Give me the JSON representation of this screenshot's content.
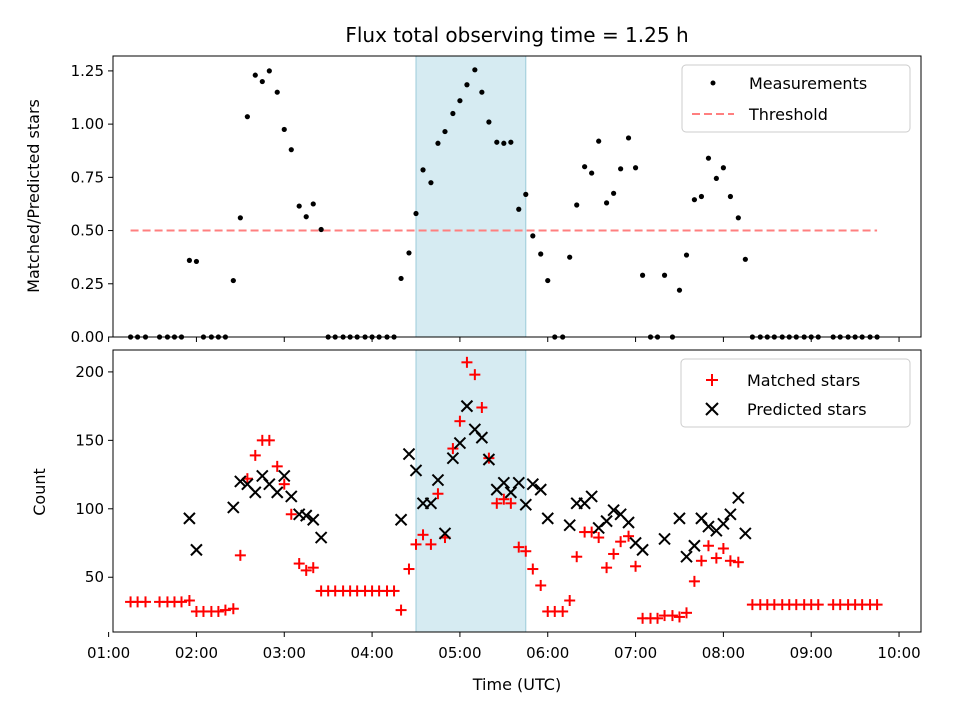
{
  "chart_data": [
    {
      "type": "scatter",
      "title": "Flux total observing time = 1.25 h",
      "xlabel": "",
      "ylabel": "Matched/Predicted stars",
      "ylim": [
        0,
        1.32
      ],
      "yticks": [
        "0.00",
        "0.25",
        "0.50",
        "0.75",
        "1.00",
        "1.25"
      ],
      "xlim_hours": [
        1.05,
        10.25
      ],
      "highlight_span_hours": [
        4.5,
        5.75
      ],
      "threshold": {
        "name": "Threshold",
        "value": 0.5,
        "x_range_hours": [
          1.25,
          9.75
        ],
        "color": "#ff7f7f"
      },
      "legend": {
        "placement": "top-right",
        "entries": [
          "Measurements",
          "Threshold"
        ]
      },
      "series": [
        {
          "name": "Measurements",
          "color": "#000000",
          "points": [
            [
              1.25,
              0
            ],
            [
              1.33,
              0
            ],
            [
              1.42,
              0
            ],
            [
              1.58,
              0
            ],
            [
              1.67,
              0
            ],
            [
              1.75,
              0
            ],
            [
              1.83,
              0
            ],
            [
              1.92,
              0.36
            ],
            [
              2.0,
              0.355
            ],
            [
              2.08,
              0
            ],
            [
              2.17,
              0
            ],
            [
              2.25,
              0
            ],
            [
              2.33,
              0
            ],
            [
              2.42,
              0.265
            ],
            [
              2.5,
              0.56
            ],
            [
              2.58,
              1.035
            ],
            [
              2.67,
              1.23
            ],
            [
              2.75,
              1.2
            ],
            [
              2.83,
              1.25
            ],
            [
              2.92,
              1.15
            ],
            [
              3.0,
              0.975
            ],
            [
              3.08,
              0.88
            ],
            [
              3.17,
              0.615
            ],
            [
              3.25,
              0.565
            ],
            [
              3.33,
              0.625
            ],
            [
              3.42,
              0.505
            ],
            [
              3.5,
              0
            ],
            [
              3.58,
              0
            ],
            [
              3.67,
              0
            ],
            [
              3.75,
              0
            ],
            [
              3.83,
              0
            ],
            [
              3.92,
              0
            ],
            [
              4.0,
              0
            ],
            [
              4.08,
              0
            ],
            [
              4.17,
              0
            ],
            [
              4.25,
              0
            ],
            [
              4.33,
              0.275
            ],
            [
              4.42,
              0.395
            ],
            [
              4.5,
              0.58
            ],
            [
              4.58,
              0.785
            ],
            [
              4.67,
              0.725
            ],
            [
              4.75,
              0.91
            ],
            [
              4.83,
              0.965
            ],
            [
              4.92,
              1.05
            ],
            [
              5.0,
              1.11
            ],
            [
              5.08,
              1.185
            ],
            [
              5.17,
              1.255
            ],
            [
              5.25,
              1.15
            ],
            [
              5.33,
              1.01
            ],
            [
              5.42,
              0.915
            ],
            [
              5.5,
              0.91
            ],
            [
              5.58,
              0.915
            ],
            [
              5.67,
              0.6
            ],
            [
              5.75,
              0.67
            ],
            [
              5.83,
              0.475
            ],
            [
              5.92,
              0.39
            ],
            [
              6.0,
              0.265
            ],
            [
              6.08,
              0
            ],
            [
              6.17,
              0
            ],
            [
              6.25,
              0.375
            ],
            [
              6.33,
              0.62
            ],
            [
              6.42,
              0.8
            ],
            [
              6.5,
              0.77
            ],
            [
              6.58,
              0.92
            ],
            [
              6.67,
              0.63
            ],
            [
              6.75,
              0.675
            ],
            [
              6.83,
              0.79
            ],
            [
              6.92,
              0.935
            ],
            [
              7.0,
              0.795
            ],
            [
              7.08,
              0.29
            ],
            [
              7.17,
              0
            ],
            [
              7.25,
              0
            ],
            [
              7.33,
              0.29
            ],
            [
              7.42,
              0
            ],
            [
              7.5,
              0.22
            ],
            [
              7.58,
              0.385
            ],
            [
              7.67,
              0.645
            ],
            [
              7.75,
              0.66
            ],
            [
              7.83,
              0.84
            ],
            [
              7.92,
              0.745
            ],
            [
              8.0,
              0.795
            ],
            [
              8.08,
              0.66
            ],
            [
              8.17,
              0.56
            ],
            [
              8.25,
              0.365
            ],
            [
              8.33,
              0
            ],
            [
              8.42,
              0
            ],
            [
              8.5,
              0
            ],
            [
              8.58,
              0
            ],
            [
              8.67,
              0
            ],
            [
              8.75,
              0
            ],
            [
              8.83,
              0
            ],
            [
              8.92,
              0
            ],
            [
              9.0,
              0
            ],
            [
              9.08,
              0
            ],
            [
              9.25,
              0
            ],
            [
              9.33,
              0
            ],
            [
              9.42,
              0
            ],
            [
              9.5,
              0
            ],
            [
              9.58,
              0
            ],
            [
              9.67,
              0
            ],
            [
              9.75,
              0
            ]
          ]
        }
      ]
    },
    {
      "type": "scatter",
      "title": "",
      "xlabel": "Time (UTC)",
      "ylabel": "Count",
      "ylim": [
        10,
        216
      ],
      "yticks": [
        "50",
        "100",
        "150",
        "200"
      ],
      "xlim_hours": [
        1.05,
        10.25
      ],
      "xticks": [
        "01:00",
        "02:00",
        "03:00",
        "04:00",
        "05:00",
        "06:00",
        "07:00",
        "08:00",
        "09:00",
        "10:00"
      ],
      "highlight_span_hours": [
        4.5,
        5.75
      ],
      "legend": {
        "placement": "top-right",
        "entries": [
          "Matched stars",
          "Predicted stars"
        ]
      },
      "series": [
        {
          "name": "Matched stars",
          "marker": "plus",
          "color": "#ff0000",
          "points": [
            [
              1.25,
              32
            ],
            [
              1.33,
              32
            ],
            [
              1.42,
              32
            ],
            [
              1.58,
              32
            ],
            [
              1.67,
              32
            ],
            [
              1.75,
              32
            ],
            [
              1.83,
              32
            ],
            [
              1.92,
              33
            ],
            [
              2.0,
              25
            ],
            [
              2.08,
              25
            ],
            [
              2.17,
              25
            ],
            [
              2.25,
              25
            ],
            [
              2.33,
              26
            ],
            [
              2.42,
              27
            ],
            [
              2.5,
              66
            ],
            [
              2.58,
              122
            ],
            [
              2.67,
              139
            ],
            [
              2.75,
              150
            ],
            [
              2.83,
              150
            ],
            [
              2.92,
              131
            ],
            [
              3.0,
              118
            ],
            [
              3.08,
              96
            ],
            [
              3.17,
              60
            ],
            [
              3.25,
              55
            ],
            [
              3.33,
              57
            ],
            [
              3.42,
              40
            ],
            [
              3.5,
              40
            ],
            [
              3.58,
              40
            ],
            [
              3.67,
              40
            ],
            [
              3.75,
              40
            ],
            [
              3.83,
              40
            ],
            [
              3.92,
              40
            ],
            [
              4.0,
              40
            ],
            [
              4.08,
              40
            ],
            [
              4.17,
              40
            ],
            [
              4.25,
              40
            ],
            [
              4.33,
              26
            ],
            [
              4.42,
              56
            ],
            [
              4.5,
              74
            ],
            [
              4.58,
              81
            ],
            [
              4.67,
              74
            ],
            [
              4.75,
              111
            ],
            [
              4.83,
              79
            ],
            [
              4.92,
              144
            ],
            [
              5.0,
              164
            ],
            [
              5.08,
              207
            ],
            [
              5.17,
              198
            ],
            [
              5.25,
              174
            ],
            [
              5.33,
              137
            ],
            [
              5.42,
              104
            ],
            [
              5.5,
              107
            ],
            [
              5.58,
              104
            ],
            [
              5.67,
              72
            ],
            [
              5.75,
              69
            ],
            [
              5.83,
              56
            ],
            [
              5.92,
              44
            ],
            [
              6.0,
              25
            ],
            [
              6.08,
              25
            ],
            [
              6.17,
              25
            ],
            [
              6.25,
              33
            ],
            [
              6.33,
              65
            ],
            [
              6.42,
              83
            ],
            [
              6.5,
              83
            ],
            [
              6.58,
              79
            ],
            [
              6.67,
              57
            ],
            [
              6.75,
              67
            ],
            [
              6.83,
              76
            ],
            [
              6.92,
              80
            ],
            [
              7.0,
              58
            ],
            [
              7.08,
              20
            ],
            [
              7.17,
              20
            ],
            [
              7.25,
              20
            ],
            [
              7.33,
              22
            ],
            [
              7.42,
              22
            ],
            [
              7.5,
              21
            ],
            [
              7.58,
              24
            ],
            [
              7.67,
              47
            ],
            [
              7.75,
              62
            ],
            [
              7.83,
              73
            ],
            [
              7.92,
              64
            ],
            [
              8.0,
              71
            ],
            [
              8.08,
              62
            ],
            [
              8.17,
              61
            ],
            [
              8.33,
              30
            ],
            [
              8.42,
              30
            ],
            [
              8.5,
              30
            ],
            [
              8.58,
              30
            ],
            [
              8.67,
              30
            ],
            [
              8.75,
              30
            ],
            [
              8.83,
              30
            ],
            [
              8.92,
              30
            ],
            [
              9.0,
              30
            ],
            [
              9.08,
              30
            ],
            [
              9.25,
              30
            ],
            [
              9.33,
              30
            ],
            [
              9.42,
              30
            ],
            [
              9.5,
              30
            ],
            [
              9.58,
              30
            ],
            [
              9.67,
              30
            ],
            [
              9.75,
              30
            ]
          ]
        },
        {
          "name": "Predicted stars",
          "marker": "x",
          "color": "#000000",
          "points": [
            [
              1.92,
              93
            ],
            [
              2.0,
              70
            ],
            [
              2.42,
              101
            ],
            [
              2.5,
              120
            ],
            [
              2.58,
              118
            ],
            [
              2.67,
              112
            ],
            [
              2.75,
              124
            ],
            [
              2.83,
              118
            ],
            [
              2.92,
              112
            ],
            [
              3.0,
              124
            ],
            [
              3.08,
              109
            ],
            [
              3.17,
              96
            ],
            [
              3.25,
              95
            ],
            [
              3.33,
              92
            ],
            [
              3.42,
              79
            ],
            [
              4.33,
              92
            ],
            [
              4.42,
              140
            ],
            [
              4.5,
              128
            ],
            [
              4.58,
              104
            ],
            [
              4.67,
              104
            ],
            [
              4.75,
              121
            ],
            [
              4.83,
              82
            ],
            [
              4.92,
              137
            ],
            [
              5.0,
              148
            ],
            [
              5.08,
              175
            ],
            [
              5.17,
              158
            ],
            [
              5.25,
              152
            ],
            [
              5.33,
              136
            ],
            [
              5.42,
              114
            ],
            [
              5.5,
              119
            ],
            [
              5.58,
              112
            ],
            [
              5.67,
              119
            ],
            [
              5.75,
              103
            ],
            [
              5.83,
              118
            ],
            [
              5.92,
              114
            ],
            [
              6.0,
              93
            ],
            [
              6.25,
              88
            ],
            [
              6.33,
              104
            ],
            [
              6.42,
              104
            ],
            [
              6.5,
              109
            ],
            [
              6.58,
              86
            ],
            [
              6.67,
              91
            ],
            [
              6.75,
              99
            ],
            [
              6.83,
              96
            ],
            [
              6.92,
              90
            ],
            [
              7.0,
              75
            ],
            [
              7.08,
              70
            ],
            [
              7.33,
              78
            ],
            [
              7.5,
              93
            ],
            [
              7.58,
              65
            ],
            [
              7.67,
              73
            ],
            [
              7.75,
              93
            ],
            [
              7.83,
              87
            ],
            [
              7.92,
              84
            ],
            [
              8.0,
              89
            ],
            [
              8.08,
              96
            ],
            [
              8.17,
              108
            ],
            [
              8.25,
              82
            ]
          ]
        }
      ]
    }
  ]
}
